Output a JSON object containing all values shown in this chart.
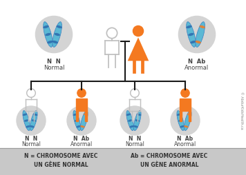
{
  "bg_color": "#f2f2f2",
  "white": "#ffffff",
  "orange": "#f47920",
  "blue_chrom": "#5bb8d4",
  "blue_dark": "#3a7fc1",
  "blue_band": "#2d6aad",
  "gray_circle": "#d4d4d4",
  "gray_figure": "#c0c0c0",
  "text_dark": "#444444",
  "footer_bg": "#c8c8c8",
  "footer_text": "#333333",
  "line_color": "#1a1a1a",
  "footer_text1": "N = CHROMOSOME AVEC\nUN GÈNE NORMAL",
  "footer_text2": "Ab = CHROMOSOME AVEC\nUN GÈNE ANORMAL",
  "watermark": "© AbdurKidsHealth.ca"
}
